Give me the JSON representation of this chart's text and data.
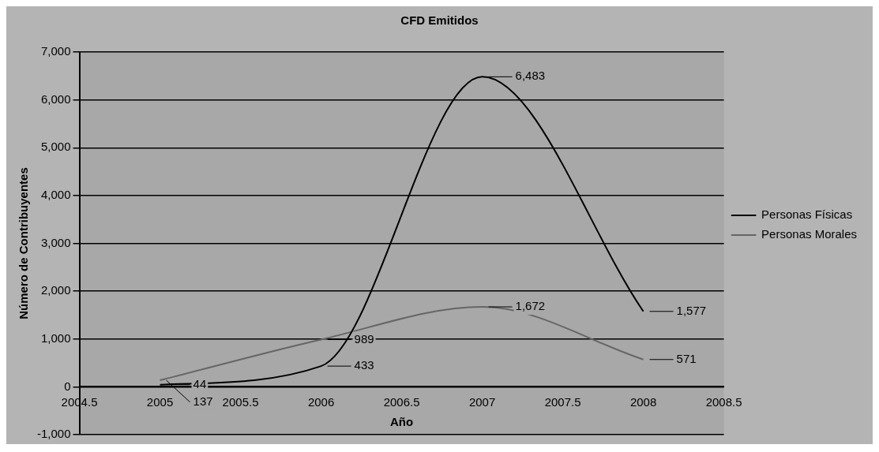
{
  "chart_data": {
    "type": "line",
    "title": "CFD Emitidos",
    "xlabel": "Año",
    "ylabel": "Número de Contribuyentes",
    "x": [
      2005,
      2006,
      2007,
      2008
    ],
    "series": [
      {
        "name": "Personas Físicas",
        "color": "#000000",
        "values": [
          44,
          433,
          6483,
          1577
        ],
        "value_labels": [
          "44",
          "433",
          "6,483",
          "1,577"
        ]
      },
      {
        "name": "Personas Morales",
        "color": "#666666",
        "values": [
          137,
          989,
          1672,
          571
        ],
        "value_labels": [
          "137",
          "989",
          "1,672",
          "571"
        ]
      }
    ],
    "xlim": [
      2004.5,
      2008.5
    ],
    "xticks": [
      2004.5,
      2005,
      2005.5,
      2006,
      2006.5,
      2007,
      2007.5,
      2008,
      2008.5
    ],
    "ylim": [
      -1000,
      7000
    ],
    "yticks": [
      {
        "value": -1000,
        "label": "-1,000"
      },
      0,
      {
        "value": 1000,
        "label": "1,000"
      },
      {
        "value": 2000,
        "label": "2,000"
      },
      {
        "value": 3000,
        "label": "3,000"
      },
      {
        "value": 4000,
        "label": "4,000"
      },
      {
        "value": 5000,
        "label": "5,000"
      },
      {
        "value": 6000,
        "label": "6,000"
      },
      {
        "value": 7000,
        "label": "7,000"
      }
    ],
    "grid": "y",
    "legend": "right",
    "marker": "none",
    "line_style": "solid"
  }
}
